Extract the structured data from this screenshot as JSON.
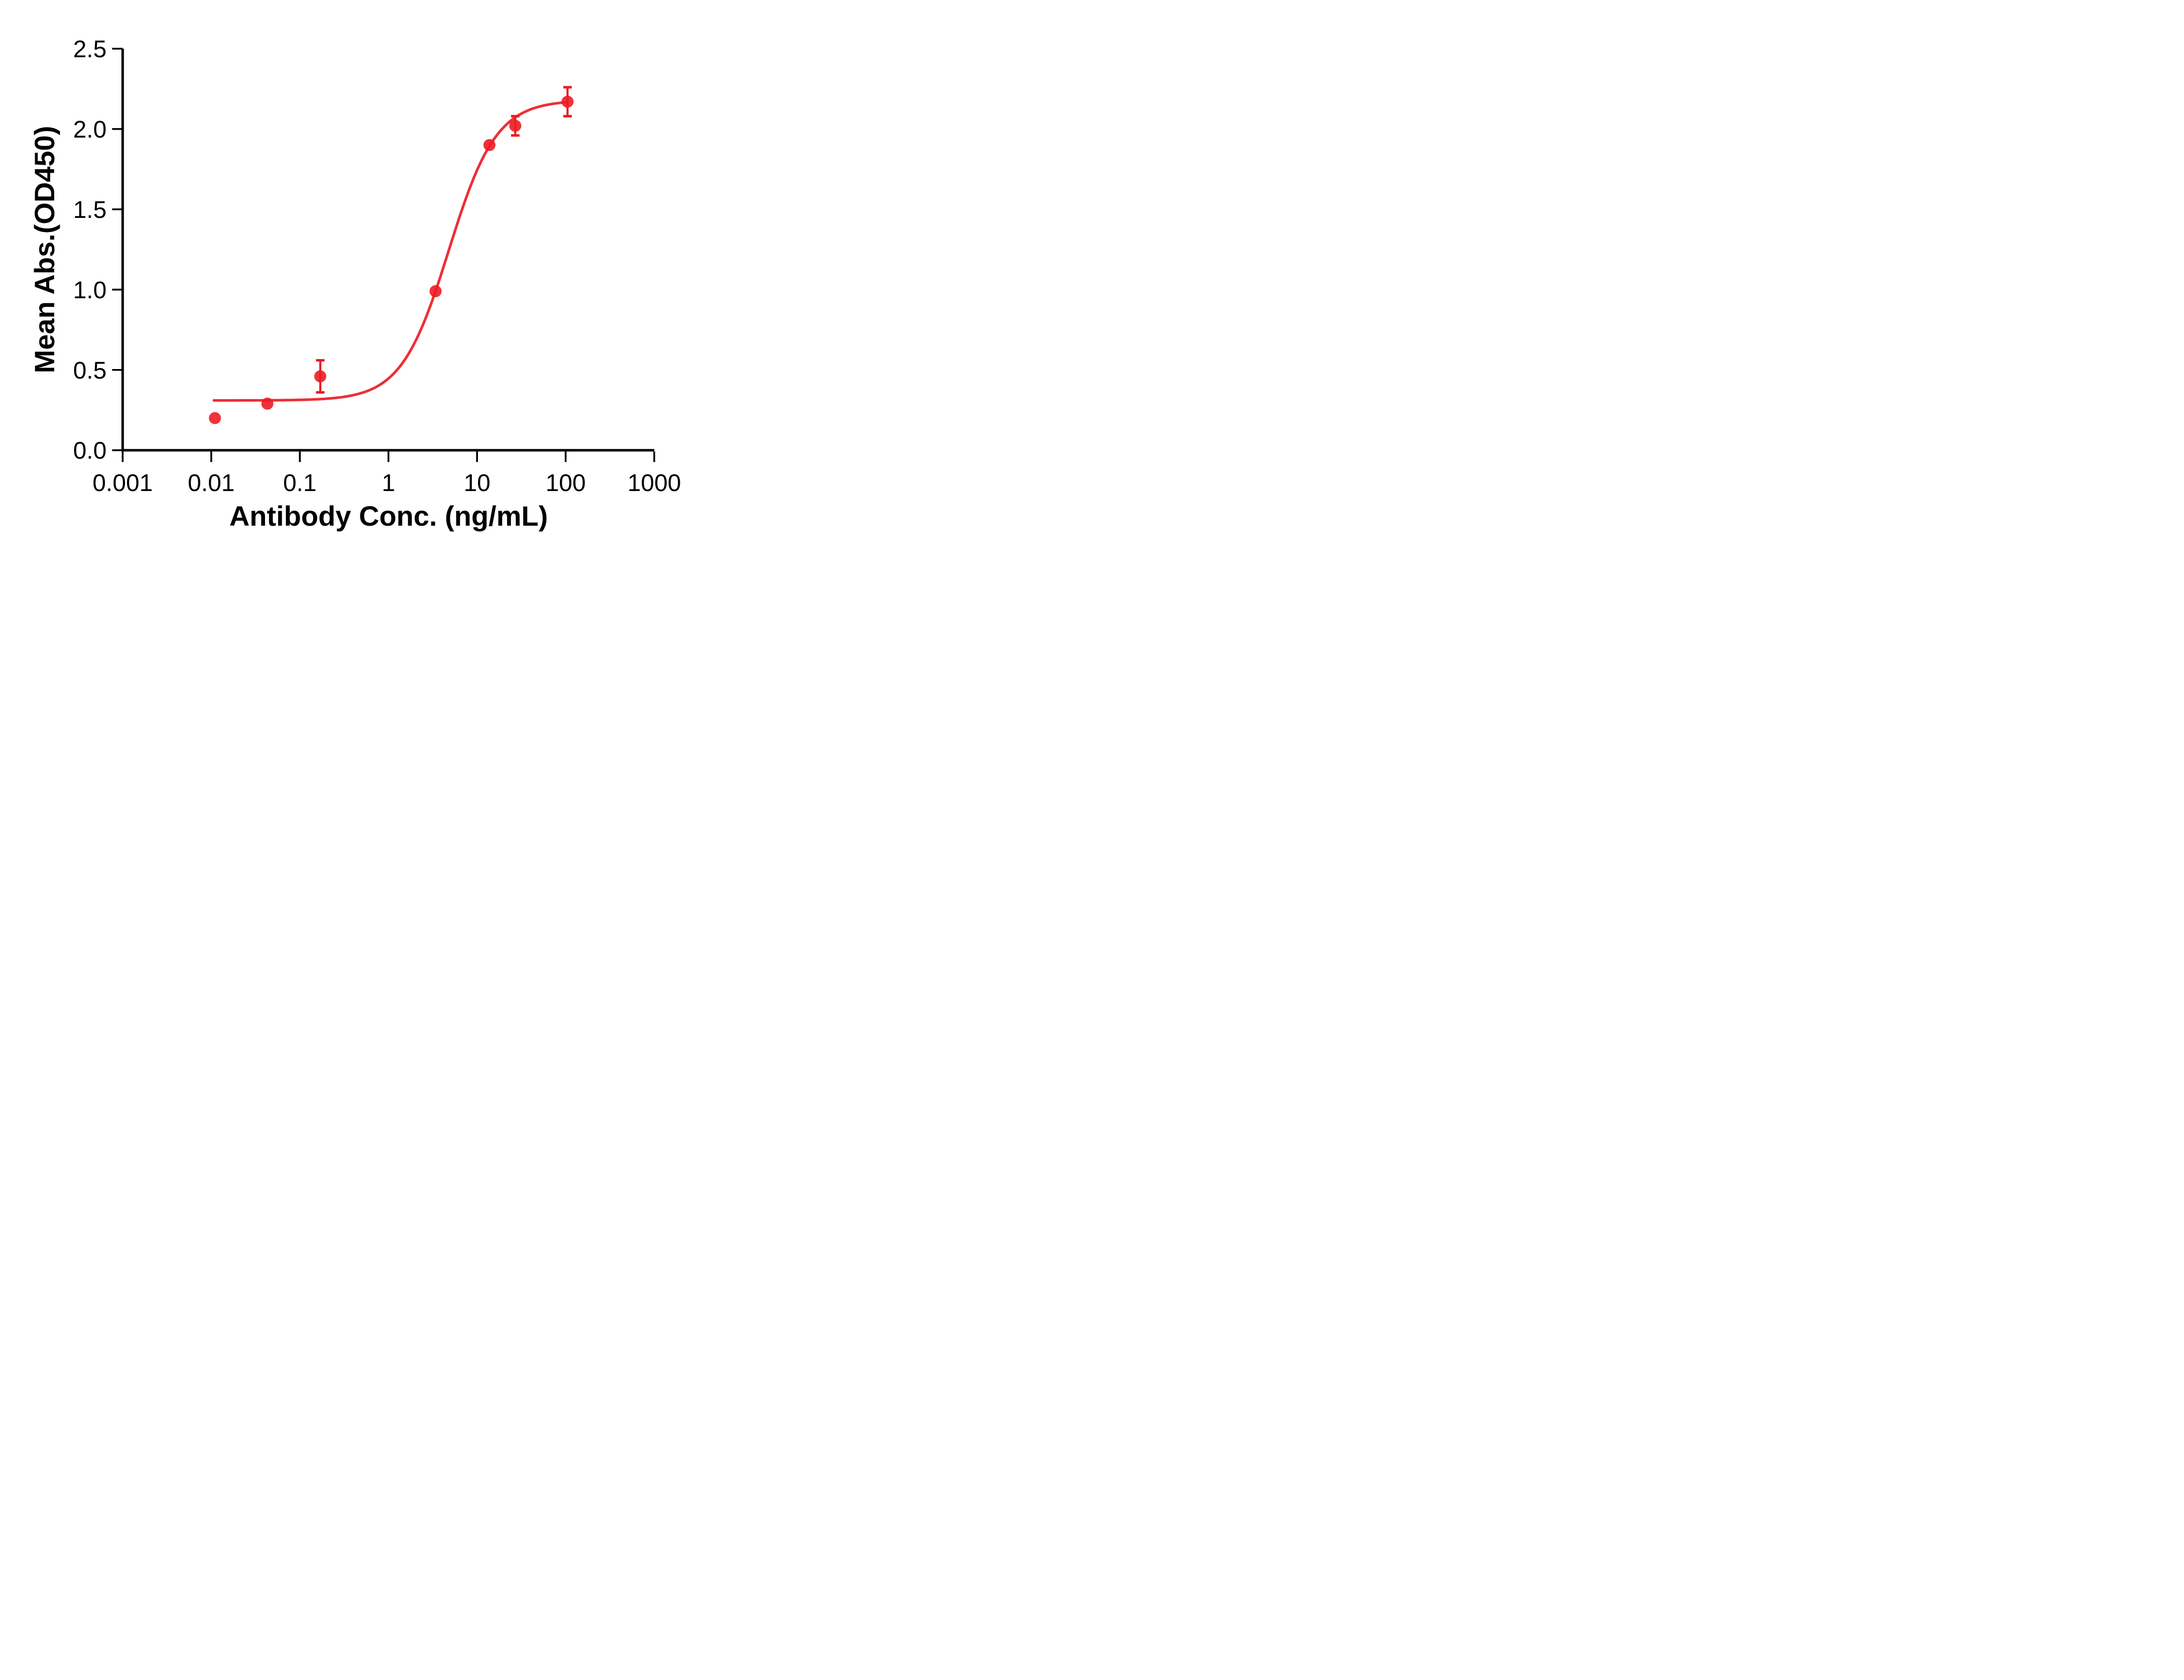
{
  "chart_data": {
    "type": "scatter",
    "title": "",
    "xlabel": "Antibody Conc. (ng/mL)",
    "ylabel": "Mean Abs.(OD450)",
    "x_scale": "log",
    "xlim": [
      0.001,
      1000
    ],
    "ylim": [
      0,
      2.5
    ],
    "x_tick_values": [
      0.001,
      0.01,
      0.1,
      1,
      10,
      100,
      1000
    ],
    "x_tick_labels": [
      "0.001",
      "0.01",
      "0.1",
      "1",
      "10",
      "100",
      "1000"
    ],
    "y_tick_values": [
      0,
      0.5,
      1,
      1.5,
      2,
      2.5
    ],
    "y_tick_labels": [
      "0.0",
      "0.5",
      "1.0",
      "1.5",
      "2.0",
      "2.5"
    ],
    "grid": false,
    "legend": "none",
    "axis_color": "#000000",
    "series": [
      {
        "marker": "circle",
        "marker_color": "#ED1C24",
        "line_color": "#ED1C24",
        "points": [
          {
            "x": 0.011,
            "y": 0.2,
            "err": 0
          },
          {
            "x": 0.043,
            "y": 0.29,
            "err": 0
          },
          {
            "x": 0.17,
            "y": 0.46,
            "err": 0.1
          },
          {
            "x": 3.4,
            "y": 0.99,
            "err": 0
          },
          {
            "x": 13.8,
            "y": 1.9,
            "err": 0
          },
          {
            "x": 27,
            "y": 2.02,
            "err": 0.06
          },
          {
            "x": 105,
            "y": 2.17,
            "err": 0.09
          }
        ],
        "fit": {
          "model": "4PL",
          "bottom": 0.31,
          "top": 2.18,
          "ec50": 4.8,
          "hill": 1.62,
          "x_range": [
            0.0107,
            105
          ]
        }
      }
    ]
  }
}
